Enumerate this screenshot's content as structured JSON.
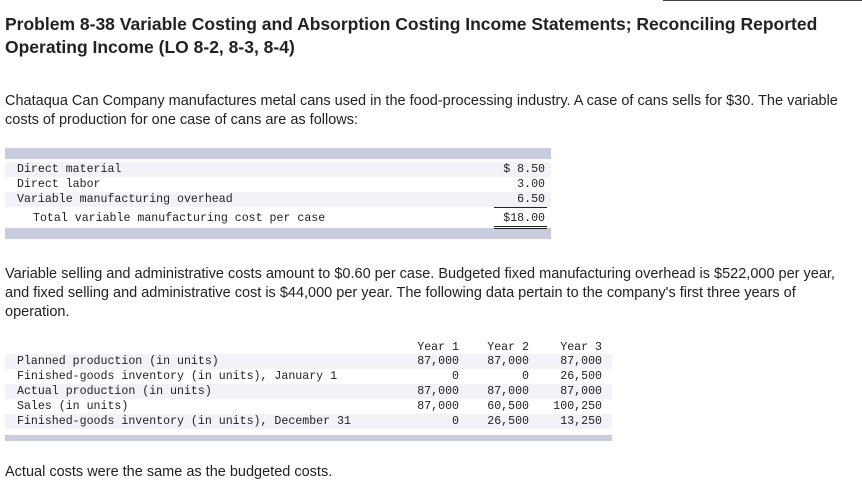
{
  "title": "Problem 8-38 Variable Costing and Absorption Costing Income Statements; Reconciling Reported Operating Income (LO 8-2, 8-3, 8-4)",
  "intro": "Chataqua Can Company manufactures metal cans used in the food-processing industry. A case of cans sells for $30. The variable costs of production for one case of cans are as follows:",
  "cost_table": {
    "rows": [
      {
        "label": "Direct material",
        "value": "$ 8.50"
      },
      {
        "label": "Direct labor",
        "value": "3.00"
      },
      {
        "label": "Variable manufacturing overhead",
        "value": "6.50"
      },
      {
        "label": "Total variable manufacturing cost per case",
        "value": "$18.00"
      }
    ]
  },
  "middle_text": "Variable selling and administrative costs amount to $0.60 per case. Budgeted fixed manufacturing overhead is $522,000 per year, and fixed selling and administrative cost is $44,000 per year. The following data pertain to the company's first three years of operation.",
  "production_table": {
    "headers": [
      "Year 1",
      "Year 2",
      "Year 3"
    ],
    "rows": [
      {
        "label": "Planned production (in units)",
        "values": [
          "87,000",
          "87,000",
          "87,000"
        ]
      },
      {
        "label": "Finished-goods inventory (in units), January 1",
        "values": [
          "0",
          "0",
          "26,500"
        ]
      },
      {
        "label": "Actual production (in units)",
        "values": [
          "87,000",
          "87,000",
          "87,000"
        ]
      },
      {
        "label": "Sales (in units)",
        "values": [
          "87,000",
          "60,500",
          "100,250"
        ]
      },
      {
        "label": "Finished-goods inventory (in units), December 31",
        "values": [
          "0",
          "26,500",
          "13,250"
        ]
      }
    ]
  },
  "footer_text": "Actual costs were the same as the budgeted costs."
}
